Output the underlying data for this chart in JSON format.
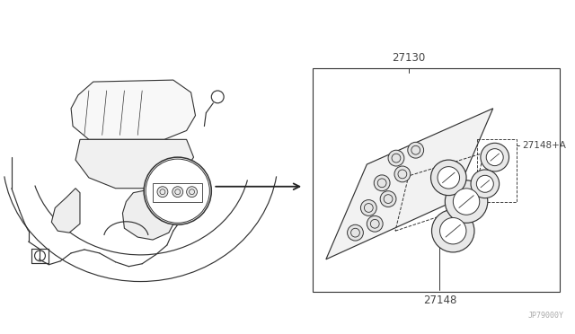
{
  "bg_color": "#ffffff",
  "line_color": "#333333",
  "label_color": "#444444",
  "watermark": "JP79000Y",
  "watermark_color": "#aaaaaa",
  "label_27130": "27130",
  "label_27148": "27148",
  "label_27148A": "27148+A",
  "fig_width": 6.4,
  "fig_height": 3.72,
  "dpi": 100,
  "lw_main": 0.85
}
